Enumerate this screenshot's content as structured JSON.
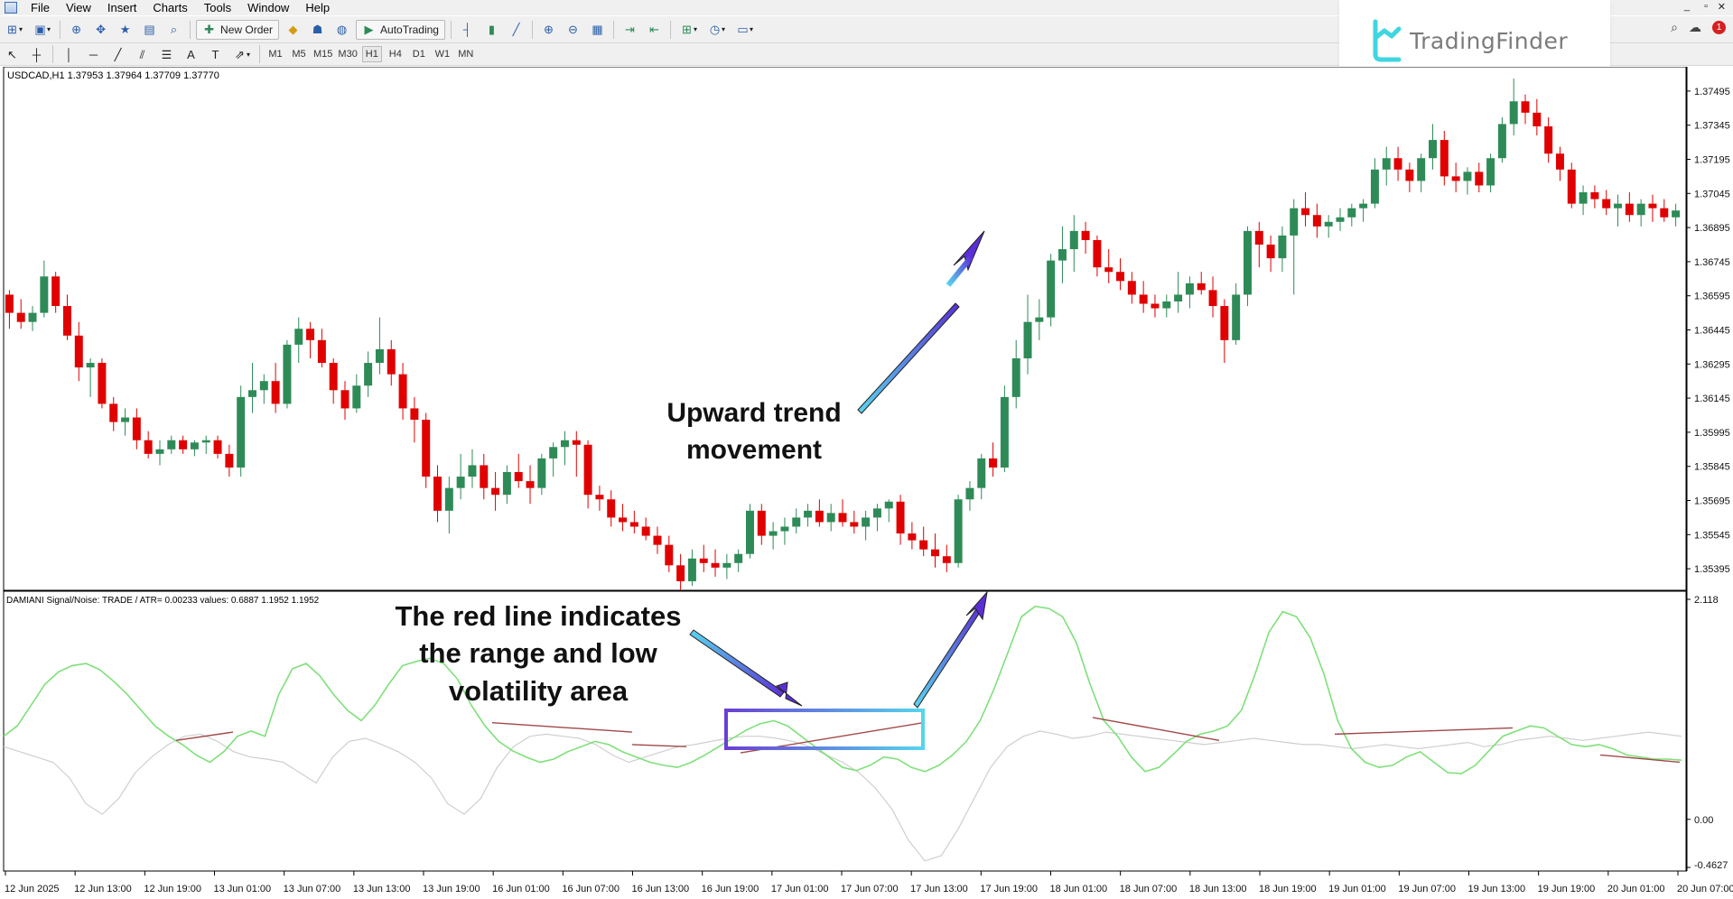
{
  "menu": {
    "items": [
      "File",
      "View",
      "Insert",
      "Charts",
      "Tools",
      "Window",
      "Help"
    ],
    "window_controls": [
      "_",
      "▫",
      "✕"
    ]
  },
  "toolbar": {
    "new_order_label": "New Order",
    "autotrading_label": "AutoTrading",
    "timeframes": [
      "M1",
      "M5",
      "M15",
      "M30",
      "H1",
      "H4",
      "D1",
      "W1",
      "MN"
    ],
    "active_timeframe": "H1"
  },
  "branding": {
    "logo_text": "TradingFinder"
  },
  "notifications": {
    "badge": "1"
  },
  "chart": {
    "symbol_label": "USDCAD,H1  1.37953 1.37964 1.37709 1.37770",
    "indicator_label": "DAMIANI Signal/Noise: TRADE  /  ATR= 0.00233   values: 0.6887 1.1952 1.1952",
    "price_ticks": [
      "1.37495",
      "1.37345",
      "1.37195",
      "1.37045",
      "1.36895",
      "1.36745",
      "1.36595",
      "1.36445",
      "1.36295",
      "1.36145",
      "1.35995",
      "1.35845",
      "1.35695",
      "1.35545",
      "1.35395"
    ],
    "indicator_ticks": [
      "2.118",
      "0.00",
      "-0.4627"
    ],
    "time_ticks": [
      "12 Jun 2025",
      "12 Jun 13:00",
      "12 Jun 19:00",
      "13 Jun 01:00",
      "13 Jun 07:00",
      "13 Jun 13:00",
      "13 Jun 19:00",
      "16 Jun 01:00",
      "16 Jun 07:00",
      "16 Jun 13:00",
      "16 Jun 19:00",
      "17 Jun 01:00",
      "17 Jun 07:00",
      "17 Jun 13:00",
      "17 Jun 19:00",
      "18 Jun 01:00",
      "18 Jun 07:00",
      "18 Jun 13:00",
      "18 Jun 19:00",
      "19 Jun 01:00",
      "19 Jun 07:00",
      "19 Jun 13:00",
      "19 Jun 19:00",
      "20 Jun 01:00",
      "20 Jun 07:00"
    ],
    "annotations": {
      "trend_line1": "Upward trend",
      "trend_line2": "movement",
      "range_line1": "The red line indicates",
      "range_line2": "the range and low",
      "range_line3": "volatility area"
    },
    "colors": {
      "bull": "#2e8b57",
      "bear": "#e00000",
      "signal_green": "#7fe07a",
      "noise_gray": "#cfcfcf",
      "range_red": "#a04848"
    }
  },
  "chart_data": [
    {
      "type": "candlestick",
      "title": "USDCAD,H1",
      "ylim": [
        1.3532,
        1.3757
      ],
      "candles_ohlc": [
        [
          1.366,
          1.3662,
          1.3645,
          1.3652
        ],
        [
          1.3652,
          1.3658,
          1.3645,
          1.3648
        ],
        [
          1.3648,
          1.3655,
          1.3644,
          1.3652
        ],
        [
          1.3652,
          1.3675,
          1.365,
          1.3668
        ],
        [
          1.3668,
          1.367,
          1.3652,
          1.3655
        ],
        [
          1.3655,
          1.366,
          1.364,
          1.3642
        ],
        [
          1.3642,
          1.3648,
          1.3622,
          1.3628
        ],
        [
          1.3628,
          1.3632,
          1.3615,
          1.363
        ],
        [
          1.363,
          1.3632,
          1.361,
          1.3612
        ],
        [
          1.3612,
          1.3615,
          1.36,
          1.3604
        ],
        [
          1.3604,
          1.361,
          1.3598,
          1.3606
        ],
        [
          1.3606,
          1.361,
          1.3592,
          1.3596
        ],
        [
          1.3596,
          1.36,
          1.3588,
          1.359
        ],
        [
          1.359,
          1.3596,
          1.3585,
          1.3592
        ],
        [
          1.3592,
          1.3598,
          1.359,
          1.3596
        ],
        [
          1.3596,
          1.3598,
          1.359,
          1.3592
        ],
        [
          1.3592,
          1.3596,
          1.3589,
          1.3595
        ],
        [
          1.3595,
          1.3598,
          1.359,
          1.3596
        ],
        [
          1.3596,
          1.3598,
          1.3588,
          1.359
        ],
        [
          1.359,
          1.3594,
          1.358,
          1.3584
        ],
        [
          1.3584,
          1.362,
          1.358,
          1.3615
        ],
        [
          1.3615,
          1.363,
          1.3608,
          1.3618
        ],
        [
          1.3618,
          1.3625,
          1.3612,
          1.3622
        ],
        [
          1.3622,
          1.363,
          1.3608,
          1.3612
        ],
        [
          1.3612,
          1.364,
          1.361,
          1.3638
        ],
        [
          1.3638,
          1.365,
          1.363,
          1.3645
        ],
        [
          1.3645,
          1.3648,
          1.3632,
          1.364
        ],
        [
          1.364,
          1.3645,
          1.3628,
          1.363
        ],
        [
          1.363,
          1.3632,
          1.3612,
          1.3618
        ],
        [
          1.3618,
          1.3622,
          1.3605,
          1.361
        ],
        [
          1.361,
          1.3625,
          1.3608,
          1.362
        ],
        [
          1.362,
          1.3635,
          1.3615,
          1.363
        ],
        [
          1.363,
          1.365,
          1.3625,
          1.3636
        ],
        [
          1.3636,
          1.364,
          1.362,
          1.3625
        ],
        [
          1.3625,
          1.363,
          1.3605,
          1.361
        ],
        [
          1.361,
          1.3615,
          1.3595,
          1.3605
        ],
        [
          1.3605,
          1.3608,
          1.3575,
          1.358
        ],
        [
          1.358,
          1.3585,
          1.356,
          1.3565
        ],
        [
          1.3565,
          1.358,
          1.3555,
          1.3575
        ],
        [
          1.3575,
          1.359,
          1.357,
          1.358
        ],
        [
          1.358,
          1.3592,
          1.3575,
          1.3585
        ],
        [
          1.3585,
          1.359,
          1.357,
          1.3575
        ],
        [
          1.3575,
          1.3582,
          1.3565,
          1.3572
        ],
        [
          1.3572,
          1.3585,
          1.3568,
          1.3582
        ],
        [
          1.3582,
          1.359,
          1.3575,
          1.3578
        ],
        [
          1.3578,
          1.3585,
          1.3568,
          1.3575
        ],
        [
          1.3575,
          1.359,
          1.3572,
          1.3588
        ],
        [
          1.3588,
          1.3595,
          1.358,
          1.3593
        ],
        [
          1.3593,
          1.36,
          1.3585,
          1.3596
        ],
        [
          1.3596,
          1.36,
          1.358,
          1.3594
        ],
        [
          1.3594,
          1.3596,
          1.3566,
          1.3572
        ],
        [
          1.3572,
          1.3576,
          1.3565,
          1.357
        ],
        [
          1.357,
          1.3574,
          1.3558,
          1.3562
        ],
        [
          1.3562,
          1.3568,
          1.3556,
          1.356
        ],
        [
          1.356,
          1.3565,
          1.3555,
          1.3558
        ],
        [
          1.3558,
          1.3562,
          1.3552,
          1.3554
        ],
        [
          1.3554,
          1.3558,
          1.3546,
          1.355
        ],
        [
          1.355,
          1.3554,
          1.3538,
          1.3541
        ],
        [
          1.3541,
          1.3546,
          1.353,
          1.3534
        ],
        [
          1.3534,
          1.3548,
          1.3532,
          1.3544
        ],
        [
          1.3544,
          1.355,
          1.3538,
          1.3542
        ],
        [
          1.3542,
          1.3548,
          1.3536,
          1.354
        ],
        [
          1.354,
          1.3546,
          1.3535,
          1.3542
        ],
        [
          1.3542,
          1.3548,
          1.3538,
          1.3546
        ],
        [
          1.3546,
          1.3568,
          1.3544,
          1.3565
        ],
        [
          1.3565,
          1.3568,
          1.355,
          1.3554
        ],
        [
          1.3554,
          1.356,
          1.3548,
          1.3556
        ],
        [
          1.3556,
          1.3562,
          1.355,
          1.3558
        ],
        [
          1.3558,
          1.3566,
          1.3555,
          1.3562
        ],
        [
          1.3562,
          1.3568,
          1.3558,
          1.3565
        ],
        [
          1.3565,
          1.357,
          1.3558,
          1.356
        ],
        [
          1.356,
          1.3568,
          1.3556,
          1.3564
        ],
        [
          1.3564,
          1.357,
          1.3558,
          1.356
        ],
        [
          1.356,
          1.3565,
          1.3555,
          1.3558
        ],
        [
          1.3558,
          1.3565,
          1.3552,
          1.3562
        ],
        [
          1.3562,
          1.3568,
          1.3556,
          1.3566
        ],
        [
          1.3566,
          1.357,
          1.356,
          1.3569
        ],
        [
          1.3569,
          1.3572,
          1.355,
          1.3555
        ],
        [
          1.3555,
          1.356,
          1.3548,
          1.3552
        ],
        [
          1.3552,
          1.3558,
          1.3545,
          1.3548
        ],
        [
          1.3548,
          1.3555,
          1.354,
          1.3545
        ],
        [
          1.3545,
          1.355,
          1.3538,
          1.3542
        ],
        [
          1.3542,
          1.3572,
          1.354,
          1.357
        ],
        [
          1.357,
          1.3578,
          1.3565,
          1.3575
        ],
        [
          1.3575,
          1.359,
          1.357,
          1.3588
        ],
        [
          1.3588,
          1.3595,
          1.358,
          1.3584
        ],
        [
          1.3584,
          1.362,
          1.3582,
          1.3615
        ],
        [
          1.3615,
          1.364,
          1.361,
          1.3632
        ],
        [
          1.3632,
          1.366,
          1.3625,
          1.3648
        ],
        [
          1.3648,
          1.3658,
          1.364,
          1.365
        ],
        [
          1.365,
          1.3678,
          1.3646,
          1.3675
        ],
        [
          1.3675,
          1.369,
          1.3665,
          1.368
        ],
        [
          1.368,
          1.3695,
          1.367,
          1.3688
        ],
        [
          1.3688,
          1.3692,
          1.3678,
          1.3684
        ],
        [
          1.3684,
          1.3686,
          1.3668,
          1.3672
        ],
        [
          1.3672,
          1.368,
          1.3665,
          1.367
        ],
        [
          1.367,
          1.3676,
          1.3662,
          1.3666
        ],
        [
          1.3666,
          1.367,
          1.3656,
          1.366
        ],
        [
          1.366,
          1.3666,
          1.3652,
          1.3656
        ],
        [
          1.3656,
          1.366,
          1.365,
          1.3654
        ],
        [
          1.3654,
          1.366,
          1.365,
          1.3657
        ],
        [
          1.3657,
          1.367,
          1.3652,
          1.366
        ],
        [
          1.366,
          1.3668,
          1.3654,
          1.3665
        ],
        [
          1.3665,
          1.367,
          1.366,
          1.3662
        ],
        [
          1.3662,
          1.3668,
          1.365,
          1.3655
        ],
        [
          1.3655,
          1.3658,
          1.363,
          1.364
        ],
        [
          1.364,
          1.3665,
          1.3638,
          1.366
        ],
        [
          1.366,
          1.369,
          1.3655,
          1.3688
        ],
        [
          1.3688,
          1.3692,
          1.3672,
          1.3682
        ],
        [
          1.3682,
          1.3686,
          1.367,
          1.3676
        ],
        [
          1.3676,
          1.369,
          1.367,
          1.3686
        ],
        [
          1.3686,
          1.3702,
          1.366,
          1.3698
        ],
        [
          1.3698,
          1.3705,
          1.369,
          1.3695
        ],
        [
          1.3695,
          1.37,
          1.3685,
          1.369
        ],
        [
          1.369,
          1.3695,
          1.3685,
          1.3692
        ],
        [
          1.3692,
          1.3698,
          1.3688,
          1.3694
        ],
        [
          1.3694,
          1.37,
          1.369,
          1.3698
        ],
        [
          1.3698,
          1.3702,
          1.3692,
          1.37
        ],
        [
          1.37,
          1.372,
          1.3698,
          1.3715
        ],
        [
          1.3715,
          1.3725,
          1.3708,
          1.372
        ],
        [
          1.372,
          1.3725,
          1.371,
          1.3715
        ],
        [
          1.3715,
          1.3718,
          1.3705,
          1.371
        ],
        [
          1.371,
          1.3722,
          1.3705,
          1.372
        ],
        [
          1.372,
          1.3735,
          1.3715,
          1.3728
        ],
        [
          1.3728,
          1.3732,
          1.3708,
          1.3712
        ],
        [
          1.3712,
          1.3718,
          1.3705,
          1.371
        ],
        [
          1.371,
          1.3716,
          1.3704,
          1.3714
        ],
        [
          1.3714,
          1.3718,
          1.3705,
          1.3708
        ],
        [
          1.3708,
          1.3722,
          1.3705,
          1.372
        ],
        [
          1.372,
          1.3738,
          1.3718,
          1.3735
        ],
        [
          1.3735,
          1.3755,
          1.373,
          1.3745
        ],
        [
          1.3745,
          1.3748,
          1.3735,
          1.374
        ],
        [
          1.374,
          1.3746,
          1.373,
          1.3734
        ],
        [
          1.3734,
          1.3738,
          1.3718,
          1.3722
        ],
        [
          1.3722,
          1.3725,
          1.371,
          1.3715
        ],
        [
          1.3715,
          1.3718,
          1.3698,
          1.37
        ],
        [
          1.37,
          1.3708,
          1.3695,
          1.3705
        ],
        [
          1.3705,
          1.3708,
          1.3698,
          1.3702
        ],
        [
          1.3702,
          1.3706,
          1.3695,
          1.3698
        ],
        [
          1.3698,
          1.3704,
          1.369,
          1.37
        ],
        [
          1.37,
          1.3705,
          1.3692,
          1.3695
        ],
        [
          1.3695,
          1.3702,
          1.369,
          1.37
        ],
        [
          1.37,
          1.3704,
          1.3692,
          1.3698
        ],
        [
          1.3698,
          1.3702,
          1.3692,
          1.3694
        ],
        [
          1.3694,
          1.37,
          1.369,
          1.3697
        ]
      ]
    },
    {
      "type": "line",
      "title": "DAMIANI Signal/Noise",
      "ylim": [
        -0.4627,
        2.118
      ],
      "series": [
        {
          "values": [
            0.8,
            0.9,
            1.1,
            1.3,
            1.42,
            1.48,
            1.5,
            1.44,
            1.33,
            1.2,
            1.05,
            0.9,
            0.8,
            0.72,
            0.62,
            0.55,
            0.65,
            0.8,
            0.85,
            0.8,
            1.2,
            1.45,
            1.5,
            1.38,
            1.2,
            1.05,
            0.95,
            1.1,
            1.3,
            1.48,
            1.52,
            1.55,
            1.5,
            1.35,
            1.1,
            0.9,
            0.75,
            0.66,
            0.6,
            0.55,
            0.58,
            0.65,
            0.7,
            0.75,
            0.72,
            0.65,
            0.6,
            0.55,
            0.52,
            0.5,
            0.55,
            0.62,
            0.7,
            0.78,
            0.86,
            0.92,
            0.95,
            0.9,
            0.8,
            0.7,
            0.6,
            0.5,
            0.47,
            0.52,
            0.6,
            0.58,
            0.5,
            0.46,
            0.52,
            0.62,
            0.75,
            0.95,
            1.25,
            1.6,
            1.95,
            2.05,
            2.03,
            1.95,
            1.7,
            1.3,
            0.95,
            0.8,
            0.6,
            0.46,
            0.5,
            0.62,
            0.75,
            0.82,
            0.85,
            0.9,
            1.05,
            1.4,
            1.8,
            2.0,
            1.95,
            1.75,
            1.4,
            0.95,
            0.68,
            0.55,
            0.5,
            0.52,
            0.6,
            0.65,
            0.55,
            0.45,
            0.44,
            0.52,
            0.66,
            0.8,
            0.85,
            0.9,
            0.88,
            0.8,
            0.72,
            0.7,
            0.72,
            0.68,
            0.62,
            0.6,
            0.58,
            0.58,
            0.57
          ]
        },
        {
          "values": [
            0.7,
            0.65,
            0.6,
            0.55,
            0.4,
            0.15,
            0.05,
            0.2,
            0.45,
            0.6,
            0.72,
            0.8,
            0.82,
            0.75,
            0.65,
            0.6,
            0.58,
            0.55,
            0.45,
            0.35,
            0.6,
            0.75,
            0.78,
            0.72,
            0.65,
            0.55,
            0.4,
            0.15,
            0.05,
            0.2,
            0.5,
            0.7,
            0.8,
            0.82,
            0.8,
            0.78,
            0.72,
            0.62,
            0.55,
            0.6,
            0.65,
            0.7,
            0.72,
            0.75,
            0.78,
            0.8,
            0.8,
            0.78,
            0.75,
            0.7,
            0.62,
            0.55,
            0.45,
            0.3,
            0.1,
            -0.2,
            -0.4,
            -0.35,
            -0.1,
            0.2,
            0.5,
            0.7,
            0.8,
            0.85,
            0.82,
            0.78,
            0.8,
            0.84,
            0.82,
            0.8,
            0.78,
            0.76,
            0.74,
            0.72,
            0.74,
            0.76,
            0.78,
            0.76,
            0.74,
            0.72,
            0.72,
            0.7,
            0.68,
            0.7,
            0.72,
            0.7,
            0.68,
            0.7,
            0.72,
            0.74,
            0.7,
            0.72,
            0.76,
            0.78,
            0.8,
            0.78,
            0.76,
            0.78,
            0.8,
            0.82,
            0.84,
            0.82,
            0.8
          ]
        },
        {
          "values": [
            0.76,
            0.84,
            0.93,
            0.84,
            0.72,
            0.7,
            0.64,
            0.93,
            0.98,
            0.76,
            0.82,
            0.88,
            0.62,
            0.55
          ]
        }
      ]
    }
  ]
}
